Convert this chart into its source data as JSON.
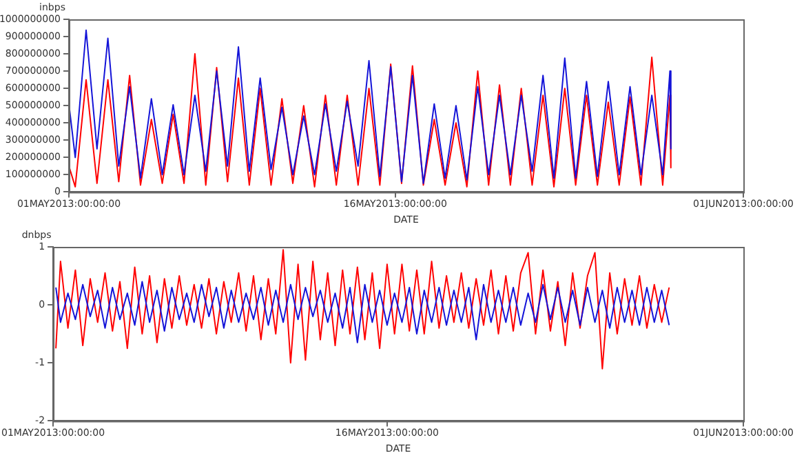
{
  "chart_data": [
    {
      "type": "line",
      "ylabel": "inbps",
      "xlabel": "DATE",
      "x": [
        "2013-05-01T00:00",
        "2013-05-01T07:00",
        "2013-05-01T19:00",
        "2013-05-02T07:00",
        "2013-05-02T19:00",
        "2013-05-03T07:00",
        "2013-05-03T19:00",
        "2013-05-04T07:00",
        "2013-05-04T19:00",
        "2013-05-05T07:00",
        "2013-05-05T19:00",
        "2013-05-06T07:00",
        "2013-05-06T19:00",
        "2013-05-07T07:00",
        "2013-05-07T19:00",
        "2013-05-08T07:00",
        "2013-05-08T19:00",
        "2013-05-09T07:00",
        "2013-05-09T19:00",
        "2013-05-10T07:00",
        "2013-05-10T19:00",
        "2013-05-11T07:00",
        "2013-05-11T19:00",
        "2013-05-12T07:00",
        "2013-05-12T19:00",
        "2013-05-13T07:00",
        "2013-05-13T19:00",
        "2013-05-14T07:00",
        "2013-05-14T19:00",
        "2013-05-15T07:00",
        "2013-05-15T19:00",
        "2013-05-16T07:00",
        "2013-05-16T19:00",
        "2013-05-17T07:00",
        "2013-05-17T19:00",
        "2013-05-18T07:00",
        "2013-05-18T19:00",
        "2013-05-19T07:00",
        "2013-05-19T19:00",
        "2013-05-20T07:00",
        "2013-05-20T19:00",
        "2013-05-21T07:00",
        "2013-05-21T19:00",
        "2013-05-22T07:00",
        "2013-05-22T19:00",
        "2013-05-23T07:00",
        "2013-05-23T19:00",
        "2013-05-24T07:00",
        "2013-05-24T19:00",
        "2013-05-25T07:00",
        "2013-05-25T19:00",
        "2013-05-26T07:00",
        "2013-05-26T19:00",
        "2013-05-27T07:00",
        "2013-05-27T19:00",
        "2013-05-28T07:00",
        "2013-05-28T15:00",
        "2013-05-28T16:00"
      ],
      "series": [
        {
          "color": "#1414d8",
          "values": [
            510000000,
            200000000,
            937000000,
            250000000,
            890000000,
            150000000,
            610000000,
            80000000,
            540000000,
            100000000,
            505000000,
            100000000,
            560000000,
            120000000,
            700000000,
            150000000,
            840000000,
            120000000,
            660000000,
            130000000,
            490000000,
            100000000,
            440000000,
            100000000,
            510000000,
            120000000,
            525000000,
            150000000,
            760000000,
            90000000,
            725000000,
            60000000,
            675000000,
            50000000,
            510000000,
            80000000,
            500000000,
            70000000,
            610000000,
            100000000,
            560000000,
            100000000,
            560000000,
            120000000,
            675000000,
            80000000,
            775000000,
            80000000,
            640000000,
            90000000,
            640000000,
            100000000,
            610000000,
            100000000,
            560000000,
            100000000,
            700000000,
            250000000
          ]
        },
        {
          "color": "#ff0000",
          "values": [
            150000000,
            30000000,
            650000000,
            50000000,
            650000000,
            60000000,
            675000000,
            40000000,
            420000000,
            50000000,
            450000000,
            50000000,
            800000000,
            40000000,
            720000000,
            60000000,
            660000000,
            40000000,
            600000000,
            40000000,
            540000000,
            50000000,
            500000000,
            30000000,
            560000000,
            40000000,
            560000000,
            40000000,
            600000000,
            40000000,
            740000000,
            50000000,
            730000000,
            40000000,
            420000000,
            40000000,
            400000000,
            30000000,
            700000000,
            40000000,
            620000000,
            40000000,
            600000000,
            40000000,
            560000000,
            30000000,
            600000000,
            40000000,
            560000000,
            40000000,
            520000000,
            40000000,
            550000000,
            40000000,
            780000000,
            40000000,
            560000000,
            140000000
          ]
        }
      ],
      "xlim": [
        "2013-05-01T00:00",
        "2013-06-01T00:00"
      ],
      "xticks": [
        {
          "value": "2013-05-01T00:00",
          "label": "01MAY2013:00:00:00"
        },
        {
          "value": "2013-05-16T00:00",
          "label": "16MAY2013:00:00:00"
        },
        {
          "value": "2013-06-01T00:00",
          "label": "01JUN2013:00:00:00"
        }
      ],
      "ylim": [
        0,
        1000000000
      ],
      "yticks": [
        0,
        100000000,
        200000000,
        300000000,
        400000000,
        500000000,
        600000000,
        700000000,
        800000000,
        900000000,
        1000000000
      ]
    },
    {
      "type": "line",
      "ylabel": "dnbps",
      "xlabel": "DATE",
      "x": [
        "2013-05-01T03:00",
        "2013-05-01T08:00",
        "2013-05-01T16:00",
        "2013-05-02T00:00",
        "2013-05-02T08:00",
        "2013-05-02T16:00",
        "2013-05-03T00:00",
        "2013-05-03T08:00",
        "2013-05-03T16:00",
        "2013-05-04T00:00",
        "2013-05-04T08:00",
        "2013-05-04T16:00",
        "2013-05-05T00:00",
        "2013-05-05T08:00",
        "2013-05-05T16:00",
        "2013-05-06T00:00",
        "2013-05-06T08:00",
        "2013-05-06T16:00",
        "2013-05-07T00:00",
        "2013-05-07T08:00",
        "2013-05-07T16:00",
        "2013-05-08T00:00",
        "2013-05-08T08:00",
        "2013-05-08T16:00",
        "2013-05-09T00:00",
        "2013-05-09T08:00",
        "2013-05-09T16:00",
        "2013-05-10T00:00",
        "2013-05-10T08:00",
        "2013-05-10T16:00",
        "2013-05-11T00:00",
        "2013-05-11T08:00",
        "2013-05-11T16:00",
        "2013-05-12T00:00",
        "2013-05-12T08:00",
        "2013-05-12T16:00",
        "2013-05-13T00:00",
        "2013-05-13T08:00",
        "2013-05-13T16:00",
        "2013-05-14T00:00",
        "2013-05-14T08:00",
        "2013-05-14T16:00",
        "2013-05-15T00:00",
        "2013-05-15T08:00",
        "2013-05-15T16:00",
        "2013-05-16T00:00",
        "2013-05-16T08:00",
        "2013-05-16T16:00",
        "2013-05-17T00:00",
        "2013-05-17T08:00",
        "2013-05-17T16:00",
        "2013-05-18T00:00",
        "2013-05-18T08:00",
        "2013-05-18T16:00",
        "2013-05-19T00:00",
        "2013-05-19T08:00",
        "2013-05-19T16:00",
        "2013-05-20T00:00",
        "2013-05-20T08:00",
        "2013-05-20T16:00",
        "2013-05-21T00:00",
        "2013-05-21T08:00",
        "2013-05-21T16:00",
        "2013-05-22T00:00",
        "2013-05-22T08:00",
        "2013-05-22T16:00",
        "2013-05-23T00:00",
        "2013-05-23T08:00",
        "2013-05-23T16:00",
        "2013-05-24T00:00",
        "2013-05-24T08:00",
        "2013-05-24T16:00",
        "2013-05-25T00:00",
        "2013-05-25T08:00",
        "2013-05-25T16:00",
        "2013-05-26T00:00",
        "2013-05-26T08:00",
        "2013-05-26T16:00",
        "2013-05-27T00:00",
        "2013-05-27T08:00",
        "2013-05-27T16:00",
        "2013-05-28T00:00",
        "2013-05-28T08:00",
        "2013-05-28T16:00"
      ],
      "series": [
        {
          "color": "#1414d8",
          "values": [
            0.3,
            -0.3,
            0.2,
            -0.25,
            0.35,
            -0.2,
            0.25,
            -0.4,
            0.3,
            -0.25,
            0.2,
            -0.35,
            0.4,
            -0.3,
            0.25,
            -0.45,
            0.3,
            -0.25,
            0.2,
            -0.3,
            0.35,
            -0.2,
            0.3,
            -0.4,
            0.25,
            -0.3,
            0.2,
            -0.25,
            0.3,
            -0.35,
            0.25,
            -0.3,
            0.35,
            -0.25,
            0.3,
            -0.2,
            0.25,
            -0.3,
            0.2,
            -0.4,
            0.3,
            -0.65,
            0.35,
            -0.3,
            0.25,
            -0.35,
            0.2,
            -0.3,
            0.3,
            -0.5,
            0.25,
            -0.3,
            0.3,
            -0.35,
            0.25,
            -0.3,
            0.3,
            -0.6,
            0.35,
            -0.3,
            0.25,
            -0.3,
            0.3,
            -0.35,
            0.2,
            -0.3,
            0.35,
            -0.25,
            0.3,
            -0.3,
            0.25,
            -0.35,
            0.3,
            -0.3,
            0.25,
            -0.4,
            0.3,
            -0.3,
            0.25,
            -0.35,
            0.3,
            -0.3,
            0.25,
            -0.35
          ]
        },
        {
          "color": "#ff0000",
          "values": [
            -0.75,
            0.75,
            -0.4,
            0.6,
            -0.7,
            0.45,
            -0.3,
            0.55,
            -0.45,
            0.4,
            -0.75,
            0.65,
            -0.5,
            0.5,
            -0.65,
            0.45,
            -0.4,
            0.5,
            -0.35,
            0.35,
            -0.4,
            0.45,
            -0.5,
            0.4,
            -0.3,
            0.55,
            -0.45,
            0.5,
            -0.6,
            0.45,
            -0.5,
            0.95,
            -1.0,
            0.7,
            -0.95,
            0.75,
            -0.6,
            0.55,
            -0.7,
            0.6,
            -0.5,
            0.65,
            -0.6,
            0.55,
            -0.75,
            0.7,
            -0.5,
            0.7,
            -0.45,
            0.6,
            -0.5,
            0.75,
            -0.4,
            0.5,
            -0.3,
            0.55,
            -0.4,
            0.45,
            -0.35,
            0.6,
            -0.5,
            0.5,
            -0.45,
            0.55,
            0.9,
            -0.5,
            0.6,
            -0.45,
            0.4,
            -0.7,
            0.55,
            -0.4,
            0.5,
            0.9,
            -1.1,
            0.55,
            -0.5,
            0.45,
            -0.35,
            0.5,
            -0.4,
            0.35,
            -0.3,
            0.3
          ]
        }
      ],
      "xlim": [
        "2013-05-01T00:00",
        "2013-06-01T00:00"
      ],
      "xticks": [
        {
          "value": "2013-05-01T00:00",
          "label": "01MAY2013:00:00:00"
        },
        {
          "value": "2013-05-16T00:00",
          "label": "16MAY2013:00:00:00"
        },
        {
          "value": "2013-06-01T00:00",
          "label": "01JUN2013:00:00:00"
        }
      ],
      "ylim": [
        -2,
        1
      ],
      "yticks": [
        -2,
        -1,
        0,
        1
      ]
    }
  ]
}
